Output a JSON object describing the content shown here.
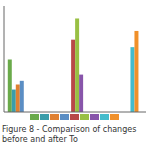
{
  "chart_data": {
    "type": "bar",
    "title": "Figure 8 - Comparison of changes before and after To",
    "categories": [
      null,
      null,
      null
    ],
    "series": [
      {
        "color": "#6aaa4a",
        "values": [
          42,
          null,
          null
        ]
      },
      {
        "color": "#3a9daa",
        "values": [
          18,
          null,
          null
        ]
      },
      {
        "color": "#e08030",
        "values": [
          22,
          null,
          null
        ]
      },
      {
        "color": "#5b8ec4",
        "values": [
          25,
          null,
          null
        ]
      },
      {
        "color": "#b84848",
        "values": [
          null,
          58,
          null
        ]
      },
      {
        "color": "#99c044",
        "values": [
          null,
          75,
          null
        ]
      },
      {
        "color": "#8855aa",
        "values": [
          null,
          30,
          null
        ]
      },
      {
        "color": "#44bbcc",
        "values": [
          null,
          null,
          52
        ]
      },
      {
        "color": "#f0902a",
        "values": [
          null,
          null,
          65
        ]
      }
    ],
    "ylim": [
      0,
      85
    ],
    "yticks": [
      0,
      20,
      40,
      60,
      80
    ],
    "grid": true,
    "legend": "bottom",
    "tick_labels": false
  }
}
